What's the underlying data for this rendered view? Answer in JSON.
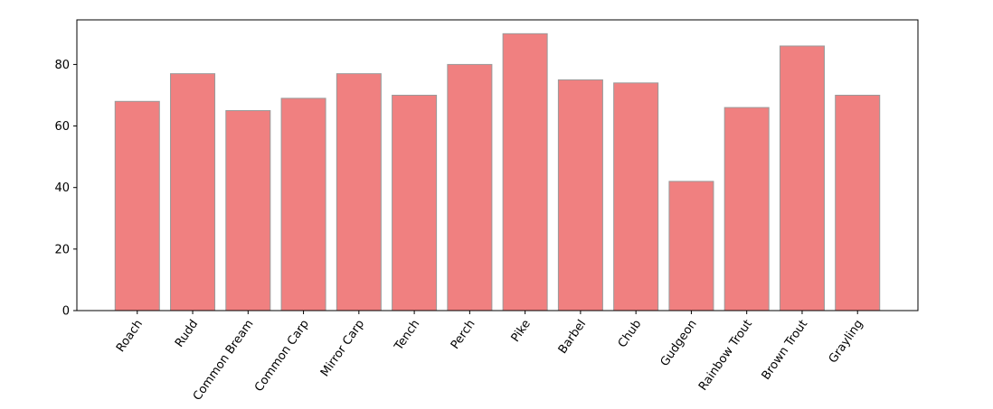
{
  "chart_data": {
    "type": "bar",
    "categories": [
      "Roach",
      "Rudd",
      "Common Bream",
      "Common Carp",
      "Mirror Carp",
      "Tench",
      "Perch",
      "Pike",
      "Barbel",
      "Chub",
      "Gudgeon",
      "Rainbow Trout",
      "Brown Trout",
      "Grayling"
    ],
    "values": [
      68,
      77,
      65,
      69,
      77,
      70,
      80,
      90,
      75,
      74,
      42,
      66,
      86,
      70
    ],
    "color": "#f08080",
    "edgecolor": "#999999",
    "ylim": [
      0,
      94.5
    ],
    "yticks": [
      0,
      20,
      40,
      60,
      80
    ],
    "grid": false
  }
}
